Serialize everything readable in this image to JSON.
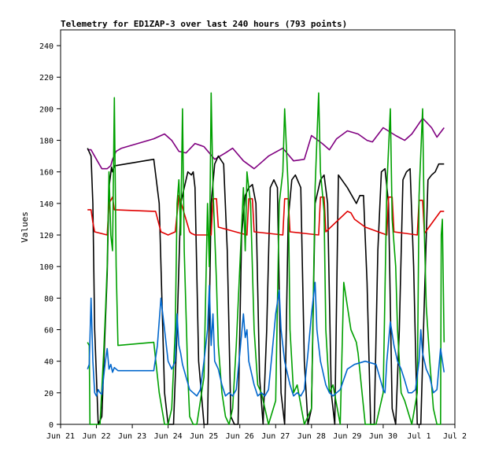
{
  "chart_data": {
    "type": "line",
    "title": "Telemetry for ED1ZAP-3 over last 240 hours (793 points)",
    "xlabel": "",
    "ylabel": "Values",
    "ylim": [
      0,
      250
    ],
    "xlim": [
      0,
      11
    ],
    "yticks": [
      0,
      20,
      40,
      60,
      80,
      100,
      120,
      140,
      160,
      180,
      200,
      220,
      240
    ],
    "xticks": [
      {
        "x": 0,
        "label": "Jun 21"
      },
      {
        "x": 1,
        "label": "Jun 22"
      },
      {
        "x": 2,
        "label": "Jun 23"
      },
      {
        "x": 3,
        "label": "Jun 24"
      },
      {
        "x": 4,
        "label": "Jun 25"
      },
      {
        "x": 5,
        "label": "Jun 26"
      },
      {
        "x": 6,
        "label": "Jun 27"
      },
      {
        "x": 7,
        "label": "Jun 28"
      },
      {
        "x": 8,
        "label": "Jun 29"
      },
      {
        "x": 9,
        "label": "Jun 30"
      },
      {
        "x": 10,
        "label": "Jul 1"
      },
      {
        "x": 11,
        "label": "Jul 2"
      }
    ],
    "grid": false,
    "legend": "none",
    "series": [
      {
        "color": "#800080",
        "x": [
          0.75,
          0.85,
          1.0,
          1.15,
          1.3,
          1.4,
          1.45,
          1.55,
          1.7,
          2.0,
          2.3,
          2.6,
          2.8,
          2.9,
          3.1,
          3.3,
          3.5,
          3.75,
          4.0,
          4.3,
          4.6,
          4.8,
          5.1,
          5.4,
          5.6,
          5.8,
          6.2,
          6.5,
          6.8,
          7.0,
          7.3,
          7.5,
          7.7,
          8.0,
          8.3,
          8.55,
          8.7,
          9.0,
          9.35,
          9.6,
          9.8,
          10.1,
          10.35,
          10.5,
          10.7
        ],
        "values": [
          174,
          174,
          168,
          162,
          162,
          164,
          168,
          173,
          175,
          177,
          179,
          181,
          183,
          184,
          180,
          173,
          172,
          178,
          176,
          168,
          172,
          175,
          167,
          162,
          166,
          170,
          175,
          167,
          168,
          183,
          178,
          174,
          181,
          186,
          184,
          180,
          179,
          188,
          183,
          180,
          184,
          194,
          188,
          182,
          188
        ]
      },
      {
        "color": "#000000",
        "x": [
          0.75,
          0.85,
          0.9,
          0.95,
          1.05,
          1.15,
          1.3,
          1.35,
          1.42,
          1.45,
          1.5,
          1.55,
          2.6,
          2.75,
          2.9,
          3.0,
          3.15,
          3.25,
          3.35,
          3.45,
          3.55,
          3.65,
          3.7,
          3.75,
          3.85,
          4.0,
          4.1,
          4.2,
          4.3,
          4.4,
          4.55,
          4.65,
          4.75,
          4.85,
          4.95,
          5.05,
          5.15,
          5.25,
          5.35,
          5.45,
          5.55,
          5.65,
          5.75,
          5.85,
          5.95,
          6.05,
          6.15,
          6.25,
          6.35,
          6.45,
          6.55,
          6.7,
          6.8,
          6.9,
          7.0,
          7.1,
          7.25,
          7.35,
          7.45,
          7.55,
          7.65,
          7.75,
          8.0,
          8.25,
          8.35,
          8.45,
          8.55,
          8.65,
          8.75,
          8.85,
          8.95,
          9.05,
          9.15,
          9.25,
          9.35,
          9.45,
          9.55,
          9.65,
          9.75,
          9.85,
          9.95,
          10.05,
          10.15,
          10.25,
          10.35,
          10.45,
          10.55,
          10.7
        ],
        "values": [
          175,
          170,
          140,
          60,
          0,
          5,
          95,
          150,
          163,
          160,
          164,
          164,
          168,
          140,
          20,
          0,
          0,
          60,
          140,
          150,
          160,
          158,
          160,
          150,
          40,
          0,
          0,
          140,
          165,
          170,
          165,
          110,
          5,
          0,
          0,
          120,
          145,
          150,
          152,
          140,
          30,
          0,
          60,
          150,
          155,
          150,
          20,
          0,
          130,
          155,
          158,
          150,
          40,
          0,
          10,
          140,
          155,
          158,
          140,
          20,
          0,
          158,
          150,
          140,
          145,
          145,
          90,
          0,
          0,
          110,
          160,
          162,
          140,
          10,
          0,
          60,
          155,
          160,
          162,
          100,
          0,
          0,
          80,
          155,
          158,
          160,
          165,
          165
        ]
      },
      {
        "color": "#e00000",
        "x": [
          0.75,
          0.85,
          0.9,
          0.95,
          1.3,
          1.35,
          1.45,
          1.5,
          2.6,
          2.65,
          2.8,
          3.0,
          3.2,
          3.3,
          3.6,
          3.65,
          3.75,
          3.8,
          4.2,
          4.25,
          4.35,
          4.4,
          5.2,
          5.25,
          5.35,
          5.4,
          6.2,
          6.25,
          6.35,
          6.4,
          7.2,
          7.25,
          7.35,
          7.4,
          8.0,
          8.1,
          8.2,
          8.5,
          9.1,
          9.15,
          9.25,
          9.3,
          9.95,
          10.0,
          10.1,
          10.15,
          10.6,
          10.65,
          10.7
        ],
        "values": [
          136,
          136,
          128,
          122,
          120,
          140,
          144,
          136,
          135,
          135,
          122,
          120,
          122,
          145,
          122,
          121,
          120,
          120,
          120,
          143,
          143,
          125,
          120,
          143,
          143,
          122,
          120,
          143,
          143,
          122,
          120,
          144,
          144,
          122,
          135,
          134,
          130,
          125,
          120,
          144,
          144,
          122,
          120,
          142,
          142,
          121,
          135,
          135,
          135
        ]
      },
      {
        "color": "#00a000",
        "x": [
          0.75,
          0.8,
          0.82,
          0.85,
          0.88,
          0.9,
          0.95,
          1.0,
          1.1,
          1.2,
          1.25,
          1.3,
          1.35,
          1.4,
          1.45,
          1.5,
          1.55,
          1.6,
          2.6,
          2.75,
          2.9,
          3.0,
          3.1,
          3.2,
          3.25,
          3.3,
          3.35,
          3.4,
          3.45,
          3.55,
          3.6,
          3.7,
          3.8,
          4.0,
          4.1,
          4.15,
          4.2,
          4.25,
          4.35,
          4.4,
          4.5,
          4.6,
          4.7,
          4.8,
          4.9,
          5.1,
          5.15,
          5.2,
          5.3,
          5.4,
          5.5,
          5.6,
          5.8,
          6.0,
          6.1,
          6.2,
          6.25,
          6.35,
          6.4,
          6.5,
          6.6,
          6.8,
          7.0,
          7.1,
          7.2,
          7.25,
          7.35,
          7.4,
          7.5,
          7.6,
          7.8,
          7.9,
          8.1,
          8.25,
          8.3,
          8.5,
          8.6,
          8.8,
          9.0,
          9.1,
          9.2,
          9.25,
          9.35,
          9.4,
          9.5,
          9.6,
          9.8,
          9.95,
          10.0,
          10.1,
          10.15,
          10.2,
          10.3,
          10.4,
          10.5,
          10.6,
          10.62,
          10.65,
          10.7
        ],
        "values": [
          52,
          50,
          0,
          0,
          0,
          0,
          0,
          0,
          0,
          45,
          70,
          100,
          160,
          120,
          110,
          207,
          100,
          50,
          52,
          20,
          0,
          0,
          10,
          60,
          140,
          155,
          120,
          200,
          110,
          30,
          5,
          0,
          0,
          30,
          140,
          100,
          210,
          150,
          90,
          50,
          20,
          5,
          0,
          10,
          50,
          150,
          110,
          160,
          140,
          60,
          25,
          20,
          0,
          15,
          140,
          160,
          200,
          150,
          60,
          20,
          25,
          0,
          10,
          150,
          210,
          160,
          135,
          60,
          20,
          25,
          0,
          90,
          60,
          52,
          45,
          0,
          0,
          0,
          20,
          150,
          200,
          130,
          100,
          60,
          20,
          15,
          0,
          20,
          145,
          200,
          120,
          75,
          40,
          10,
          0,
          0,
          120,
          130,
          52
        ]
      },
      {
        "color": "#0066cc",
        "x": [
          0.75,
          0.8,
          0.85,
          0.9,
          0.95,
          1.0,
          1.05,
          1.1,
          1.15,
          1.2,
          1.25,
          1.3,
          1.35,
          1.4,
          1.45,
          1.5,
          1.55,
          1.6,
          2.6,
          2.7,
          2.8,
          2.9,
          3.0,
          3.1,
          3.2,
          3.25,
          3.3,
          3.35,
          3.4,
          3.5,
          3.6,
          3.7,
          3.8,
          3.9,
          4.0,
          4.1,
          4.15,
          4.2,
          4.25,
          4.3,
          4.4,
          4.5,
          4.6,
          4.7,
          4.8,
          4.9,
          5.0,
          5.1,
          5.15,
          5.2,
          5.25,
          5.3,
          5.4,
          5.5,
          5.6,
          5.7,
          5.8,
          5.9,
          6.0,
          6.1,
          6.15,
          6.2,
          6.25,
          6.3,
          6.4,
          6.5,
          6.6,
          6.7,
          6.8,
          6.9,
          7.0,
          7.1,
          7.15,
          7.2,
          7.25,
          7.3,
          7.4,
          7.5,
          7.6,
          7.7,
          7.8,
          8.0,
          8.2,
          8.5,
          8.8,
          8.9,
          9.0,
          9.05,
          9.1,
          9.2,
          9.3,
          9.4,
          9.5,
          9.6,
          9.7,
          9.8,
          9.9,
          10.0,
          10.05,
          10.1,
          10.2,
          10.3,
          10.4,
          10.5,
          10.55,
          10.6,
          10.7
        ],
        "values": [
          35,
          38,
          80,
          40,
          20,
          18,
          22,
          20,
          19,
          30,
          40,
          48,
          35,
          38,
          33,
          36,
          35,
          34,
          34,
          50,
          80,
          60,
          40,
          35,
          40,
          70,
          50,
          45,
          38,
          30,
          22,
          20,
          18,
          22,
          40,
          60,
          88,
          50,
          70,
          40,
          35,
          25,
          18,
          20,
          18,
          22,
          45,
          70,
          55,
          60,
          40,
          35,
          25,
          18,
          20,
          18,
          22,
          45,
          70,
          85,
          60,
          50,
          40,
          35,
          25,
          18,
          20,
          18,
          22,
          45,
          70,
          90,
          60,
          50,
          40,
          35,
          25,
          20,
          18,
          20,
          22,
          35,
          38,
          40,
          38,
          30,
          22,
          20,
          40,
          65,
          50,
          40,
          35,
          28,
          20,
          20,
          22,
          40,
          60,
          45,
          35,
          30,
          20,
          22,
          35,
          48,
          33
        ]
      }
    ]
  }
}
